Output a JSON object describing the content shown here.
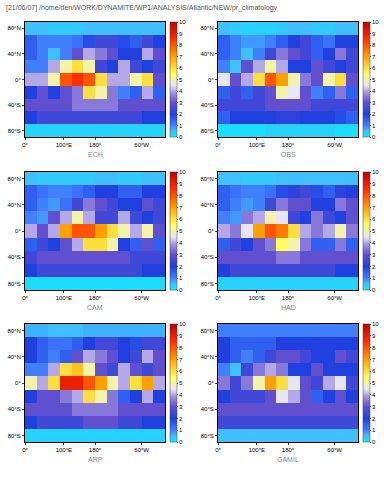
{
  "header": {
    "title": "[21/06/07] /home/den/WORK/DYNAMITE/WP1/ANALYSIS/Atlantic/NEW/pr_climatology"
  },
  "chart_data": [
    {
      "type": "heatmap",
      "title": "ECH",
      "lon_edges": [
        0,
        30,
        60,
        90,
        120,
        150,
        180,
        210,
        240,
        270,
        300,
        330,
        360
      ],
      "lat_edges": [
        -90,
        -70,
        -50,
        -30,
        -10,
        10,
        30,
        50,
        70,
        90
      ],
      "z": [
        [
          0.3,
          0.3,
          0.3,
          0.3,
          0.3,
          0.3,
          0.3,
          0.3,
          0.3,
          0.3,
          0.3,
          0.3
        ],
        [
          2,
          2.5,
          2.5,
          2.5,
          2.5,
          2.5,
          2.5,
          2.5,
          2.5,
          2.5,
          2,
          2
        ],
        [
          3,
          3,
          3,
          3,
          3.5,
          3.5,
          3.5,
          3.5,
          3,
          3,
          3,
          3
        ],
        [
          2,
          3,
          2,
          3,
          3.5,
          6,
          5,
          3.5,
          1,
          1.5,
          4,
          1.5
        ],
        [
          4,
          4,
          5,
          8,
          8.5,
          8,
          6,
          4,
          4,
          5,
          6,
          3
        ],
        [
          1,
          1,
          4,
          5,
          6,
          5,
          2.5,
          2,
          4,
          2.5,
          2,
          2.5
        ],
        [
          1.5,
          1,
          0.5,
          1,
          3,
          4,
          3.5,
          3,
          2,
          2,
          4,
          3
        ],
        [
          1.5,
          1,
          1,
          1,
          1.2,
          1.8,
          2.5,
          2.5,
          1.8,
          1.5,
          2.5,
          2
        ],
        [
          0.5,
          0.5,
          0.4,
          0.4,
          0.4,
          0.5,
          0.5,
          0.5,
          0.5,
          0.5,
          0.5,
          0.5
        ]
      ],
      "xlim": [
        0,
        360
      ],
      "xticks": [
        {
          "value": 0,
          "label": "0°"
        },
        {
          "value": 100,
          "label": "100°E"
        },
        {
          "value": 180,
          "label": "180°"
        },
        {
          "value": 300,
          "label": "60°W"
        }
      ],
      "ylim": [
        -90,
        90
      ],
      "yticks": [
        {
          "value": -80,
          "label": "80°S"
        },
        {
          "value": -40,
          "label": "40°S"
        },
        {
          "value": 0,
          "label": "0°"
        },
        {
          "value": 40,
          "label": "40°N"
        },
        {
          "value": 80,
          "label": "80°N"
        }
      ],
      "colorbar": {
        "range": [
          0,
          10
        ],
        "ticks": [
          0,
          1,
          2,
          3,
          4,
          5,
          6,
          7,
          8,
          9,
          10
        ]
      }
    },
    {
      "type": "heatmap",
      "title": "OBS",
      "lon_edges": [
        0,
        30,
        60,
        90,
        120,
        150,
        180,
        210,
        240,
        270,
        300,
        330,
        360
      ],
      "lat_edges": [
        -90,
        -70,
        -50,
        -30,
        -10,
        10,
        30,
        50,
        70,
        90
      ],
      "z": [
        [
          0.2,
          0.2,
          0.2,
          0.2,
          0.3,
          0.3,
          0.3,
          0.3,
          0.3,
          0.3,
          0.2,
          0.2
        ],
        [
          1.5,
          2,
          2,
          2,
          2,
          2.2,
          2.2,
          2,
          2,
          2,
          1.8,
          1.5
        ],
        [
          2.5,
          2.5,
          2.5,
          2.5,
          3,
          3,
          3,
          3,
          2.5,
          2.5,
          2.5,
          2.5
        ],
        [
          1.5,
          2.5,
          1.5,
          2.5,
          3,
          5,
          4.5,
          3,
          1,
          1.5,
          3.5,
          1.5
        ],
        [
          4.5,
          3,
          4,
          6,
          8,
          7,
          5,
          3.5,
          3,
          5,
          6,
          3
        ],
        [
          1,
          0.5,
          3,
          4,
          5,
          4,
          2,
          2,
          3,
          2.5,
          2,
          2.5
        ],
        [
          1.5,
          1,
          0.5,
          1,
          2.5,
          3.5,
          3,
          2.5,
          1.5,
          2,
          3.5,
          2.5
        ],
        [
          1.5,
          1,
          0.8,
          0.8,
          1,
          1.5,
          2,
          2.5,
          1.5,
          1.2,
          2,
          2
        ],
        [
          0.5,
          0.4,
          0.3,
          0.3,
          0.3,
          0.4,
          0.5,
          0.5,
          0.4,
          0.4,
          0.5,
          0.5
        ]
      ],
      "xlim": [
        0,
        360
      ],
      "xticks": [
        {
          "value": 0,
          "label": "0°"
        },
        {
          "value": 100,
          "label": "100°E"
        },
        {
          "value": 180,
          "label": "180°"
        },
        {
          "value": 300,
          "label": "60°W"
        }
      ],
      "ylim": [
        -90,
        90
      ],
      "yticks": [
        {
          "value": -80,
          "label": "80°S"
        },
        {
          "value": -40,
          "label": "40°S"
        },
        {
          "value": 0,
          "label": "0°"
        },
        {
          "value": 40,
          "label": "40°N"
        },
        {
          "value": 80,
          "label": "80°N"
        }
      ],
      "colorbar": {
        "range": [
          0,
          10
        ],
        "ticks": [
          0,
          1,
          2,
          3,
          4,
          5,
          6,
          7,
          8,
          9,
          10
        ]
      }
    },
    {
      "type": "heatmap",
      "title": "CAM",
      "lon_edges": [
        0,
        30,
        60,
        90,
        120,
        150,
        180,
        210,
        240,
        270,
        300,
        330,
        360
      ],
      "lat_edges": [
        -90,
        -70,
        -50,
        -30,
        -10,
        10,
        30,
        50,
        70,
        90
      ],
      "z": [
        [
          0.2,
          0.2,
          0.2,
          0.2,
          0.2,
          0.2,
          0.2,
          0.2,
          0.2,
          0.2,
          0.2,
          0.2
        ],
        [
          2,
          2.5,
          2.5,
          2.5,
          2.5,
          2.5,
          2.5,
          2.5,
          2.5,
          2.5,
          2,
          2
        ],
        [
          2.5,
          3,
          3,
          3,
          3,
          3,
          3,
          3,
          3,
          2.5,
          2.5,
          2.5
        ],
        [
          1.5,
          2.5,
          2,
          3,
          4,
          6,
          6,
          5,
          2,
          1.5,
          3,
          1.5
        ],
        [
          4,
          3,
          4,
          7,
          8,
          8,
          7,
          6,
          5,
          4,
          5,
          3
        ],
        [
          1,
          0.8,
          3,
          4,
          5,
          4,
          2.5,
          2.5,
          4,
          2.5,
          2,
          2.5
        ],
        [
          1.5,
          1,
          0.8,
          1.2,
          2.5,
          3.5,
          3,
          2.5,
          2,
          2,
          3,
          2.5
        ],
        [
          1.5,
          1.2,
          1,
          1,
          1.2,
          1.5,
          2,
          2,
          1.5,
          1.5,
          2,
          2
        ],
        [
          0.5,
          0.4,
          0.4,
          0.4,
          0.4,
          0.4,
          0.5,
          0.5,
          0.4,
          0.4,
          0.5,
          0.5
        ]
      ],
      "xlim": [
        0,
        360
      ],
      "xticks": [
        {
          "value": 0,
          "label": "0°"
        },
        {
          "value": 100,
          "label": "100°E"
        },
        {
          "value": 180,
          "label": "180°"
        },
        {
          "value": 300,
          "label": "60°W"
        }
      ],
      "ylim": [
        -90,
        90
      ],
      "yticks": [
        {
          "value": -80,
          "label": "80°S"
        },
        {
          "value": -40,
          "label": "40°S"
        },
        {
          "value": 0,
          "label": "0°"
        },
        {
          "value": 40,
          "label": "40°N"
        },
        {
          "value": 80,
          "label": "80°N"
        }
      ],
      "colorbar": {
        "range": [
          0,
          10
        ],
        "ticks": [
          0,
          1,
          2,
          3,
          4,
          5,
          6,
          7,
          8,
          9,
          10
        ]
      }
    },
    {
      "type": "heatmap",
      "title": "HAD",
      "lon_edges": [
        0,
        30,
        60,
        90,
        120,
        150,
        180,
        210,
        240,
        270,
        300,
        330,
        360
      ],
      "lat_edges": [
        -90,
        -70,
        -50,
        -30,
        -10,
        10,
        30,
        50,
        70,
        90
      ],
      "z": [
        [
          0.3,
          0.3,
          0.3,
          0.3,
          0.3,
          0.3,
          0.3,
          0.3,
          0.3,
          0.3,
          0.3,
          0.3
        ],
        [
          2,
          2.5,
          2.5,
          2.5,
          2.5,
          2.5,
          2.5,
          2.5,
          2.5,
          2.5,
          2,
          2
        ],
        [
          3,
          3,
          3,
          3,
          3,
          3.5,
          3.5,
          3,
          3,
          3,
          3,
          3
        ],
        [
          1.5,
          2.5,
          2,
          3,
          3.5,
          5.5,
          5,
          3.5,
          1.5,
          1.5,
          3.5,
          1.5
        ],
        [
          4,
          3.5,
          4.5,
          7,
          8,
          7.5,
          6,
          4,
          3.5,
          4,
          5,
          3.5
        ],
        [
          1,
          0.8,
          3.5,
          4,
          5,
          4.5,
          2.5,
          2,
          3.5,
          2.5,
          2,
          3
        ],
        [
          1.5,
          1,
          0.8,
          1,
          2.5,
          3.5,
          3,
          3,
          2,
          2,
          3.5,
          3
        ],
        [
          1.5,
          1.2,
          1,
          1,
          1.2,
          1.8,
          2.2,
          2.5,
          1.8,
          1.5,
          2.2,
          2
        ],
        [
          0.5,
          0.5,
          0.4,
          0.4,
          0.4,
          0.5,
          0.5,
          0.5,
          0.5,
          0.5,
          0.5,
          0.5
        ]
      ],
      "xlim": [
        0,
        360
      ],
      "xticks": [
        {
          "value": 0,
          "label": "0°"
        },
        {
          "value": 100,
          "label": "100°E"
        },
        {
          "value": 180,
          "label": "180°"
        },
        {
          "value": 300,
          "label": "60°W"
        }
      ],
      "ylim": [
        -90,
        90
      ],
      "yticks": [
        {
          "value": -80,
          "label": "80°S"
        },
        {
          "value": -40,
          "label": "40°S"
        },
        {
          "value": 0,
          "label": "0°"
        },
        {
          "value": 40,
          "label": "40°N"
        },
        {
          "value": 80,
          "label": "80°N"
        }
      ],
      "colorbar": {
        "range": [
          0,
          10
        ],
        "ticks": [
          0,
          1,
          2,
          3,
          4,
          5,
          6,
          7,
          8,
          9,
          10
        ]
      }
    },
    {
      "type": "heatmap",
      "title": "ARP",
      "lon_edges": [
        0,
        30,
        60,
        90,
        120,
        150,
        180,
        210,
        240,
        270,
        300,
        330,
        360
      ],
      "lat_edges": [
        -90,
        -70,
        -50,
        -30,
        -10,
        10,
        30,
        50,
        70,
        90
      ],
      "z": [
        [
          0.3,
          0.3,
          0.3,
          0.3,
          0.3,
          0.3,
          0.3,
          0.3,
          0.3,
          0.3,
          0.3,
          0.3
        ],
        [
          2,
          2.5,
          2.5,
          2.5,
          2.5,
          3,
          3,
          3,
          2.5,
          2.5,
          2,
          2
        ],
        [
          3,
          3,
          3,
          3,
          3.5,
          3.5,
          3.5,
          3.5,
          3,
          3,
          3,
          3
        ],
        [
          2,
          3,
          3,
          3.5,
          4,
          6,
          5,
          3.5,
          1.5,
          2,
          4,
          2
        ],
        [
          5,
          4,
          6,
          9,
          9,
          8,
          7,
          5,
          4,
          6,
          7,
          4
        ],
        [
          1,
          1,
          4,
          6,
          6.5,
          5,
          3,
          2.5,
          4,
          3,
          2.5,
          3
        ],
        [
          2,
          1.5,
          1,
          1.5,
          3,
          4,
          3.5,
          3,
          2,
          2.5,
          4,
          3
        ],
        [
          2,
          1.5,
          1.2,
          1.2,
          1.5,
          2,
          2.5,
          2.5,
          2,
          1.8,
          2.5,
          2.5
        ],
        [
          0.6,
          0.6,
          0.5,
          0.5,
          0.5,
          0.6,
          0.6,
          0.6,
          0.6,
          0.6,
          0.6,
          0.6
        ]
      ],
      "xlim": [
        0,
        360
      ],
      "xticks": [
        {
          "value": 0,
          "label": "0°"
        },
        {
          "value": 100,
          "label": "100°E"
        },
        {
          "value": 180,
          "label": "180°"
        },
        {
          "value": 300,
          "label": "60°W"
        }
      ],
      "ylim": [
        -90,
        90
      ],
      "yticks": [
        {
          "value": -80,
          "label": "80°S"
        },
        {
          "value": -40,
          "label": "40°S"
        },
        {
          "value": 0,
          "label": "0°"
        },
        {
          "value": 40,
          "label": "40°N"
        },
        {
          "value": 80,
          "label": "80°N"
        }
      ],
      "colorbar": {
        "range": [
          0,
          10
        ],
        "ticks": [
          0,
          1,
          2,
          3,
          4,
          5,
          6,
          7,
          8,
          9,
          10
        ]
      }
    },
    {
      "type": "heatmap",
      "title": "GAMIL",
      "lon_edges": [
        0,
        30,
        60,
        90,
        120,
        150,
        180,
        210,
        240,
        270,
        300,
        330,
        360
      ],
      "lat_edges": [
        -90,
        -70,
        -50,
        -30,
        -10,
        10,
        30,
        50,
        70,
        90
      ],
      "z": [
        [
          0.5,
          0.5,
          0.5,
          0.5,
          0.5,
          0.5,
          0.5,
          0.5,
          0.5,
          0.5,
          0.5,
          0.5
        ],
        [
          2.5,
          2.5,
          2.5,
          2.5,
          2.5,
          2.5,
          2.5,
          2.5,
          2.5,
          2.5,
          2.5,
          2.5
        ],
        [
          3,
          3,
          3,
          3,
          3,
          3,
          3,
          3,
          3,
          3,
          3,
          3
        ],
        [
          2,
          2.5,
          2.5,
          2.5,
          3,
          4.5,
          4,
          3,
          1.5,
          2,
          3,
          2
        ],
        [
          3.5,
          2.5,
          3.5,
          5,
          7,
          6,
          4.5,
          3,
          2.5,
          4,
          4.5,
          2.5
        ],
        [
          1,
          0.5,
          2.5,
          3.5,
          4,
          3.5,
          2,
          2,
          3,
          2,
          2,
          2
        ],
        [
          2,
          1.5,
          1,
          1.5,
          2.5,
          3,
          3,
          2.5,
          2,
          2,
          3,
          2.5
        ],
        [
          2,
          1.5,
          1.5,
          1.5,
          1.5,
          2,
          2,
          2,
          2,
          2,
          2,
          2
        ],
        [
          1,
          1,
          1,
          1,
          1,
          1,
          1,
          1,
          1,
          1,
          1,
          1
        ]
      ],
      "xlim": [
        0,
        360
      ],
      "xticks": [
        {
          "value": 0,
          "label": "0°"
        },
        {
          "value": 100,
          "label": "100°E"
        },
        {
          "value": 180,
          "label": "180°"
        },
        {
          "value": 300,
          "label": "60°W"
        }
      ],
      "ylim": [
        -90,
        90
      ],
      "yticks": [
        {
          "value": -80,
          "label": "80°S"
        },
        {
          "value": -40,
          "label": "40°S"
        },
        {
          "value": 0,
          "label": "0°"
        },
        {
          "value": 40,
          "label": "40°N"
        },
        {
          "value": 80,
          "label": "80°N"
        }
      ],
      "colorbar": {
        "range": [
          0,
          10
        ],
        "ticks": [
          0,
          1,
          2,
          3,
          4,
          5,
          6,
          7,
          8,
          9,
          10
        ]
      }
    }
  ]
}
